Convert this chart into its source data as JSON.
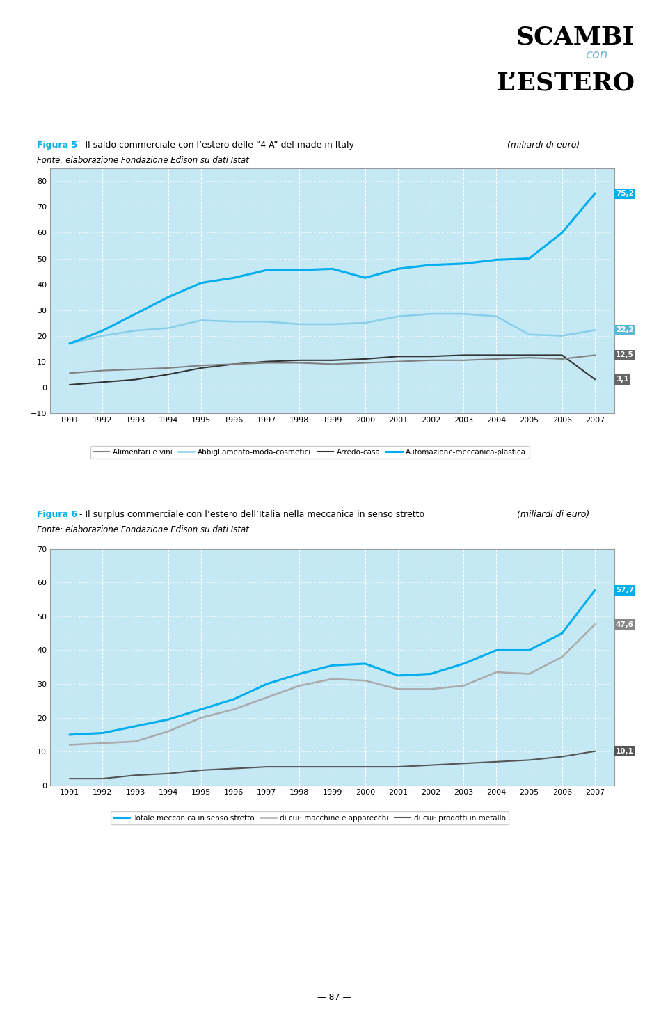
{
  "years5": [
    1991,
    1992,
    1993,
    1994,
    1995,
    1996,
    1997,
    1998,
    1999,
    2000,
    2001,
    2002,
    2003,
    2004,
    2005,
    2006,
    2007
  ],
  "years6": [
    1991,
    1992,
    1993,
    1994,
    1995,
    1996,
    1997,
    1998,
    1999,
    2000,
    2001,
    2002,
    2003,
    2004,
    2005,
    2006,
    2007
  ],
  "fig5_title_bold": "Figura 5",
  "fig5_title_rest": " - Il saldo commerciale con l’estero delle “4 A” del made in Italy",
  "fig5_title_italic": " (miliardi di euro)",
  "fig5_source": "Fonte: elaborazione Fondazione Edison su dati Istat",
  "fig5_alimentari": [
    5.5,
    6.5,
    7.0,
    7.5,
    8.5,
    9.0,
    9.5,
    9.5,
    9.0,
    9.5,
    10.0,
    10.5,
    10.5,
    11.0,
    11.5,
    11.0,
    12.5
  ],
  "fig5_abbigliamento": [
    17.0,
    20.0,
    22.0,
    23.0,
    26.0,
    25.5,
    25.5,
    24.5,
    24.5,
    25.0,
    27.5,
    28.5,
    28.5,
    27.5,
    20.5,
    20.0,
    22.2
  ],
  "fig5_arredo": [
    1.0,
    2.0,
    3.0,
    5.0,
    7.5,
    9.0,
    10.0,
    10.5,
    10.5,
    11.0,
    12.0,
    12.0,
    12.5,
    12.5,
    12.5,
    12.5,
    3.1
  ],
  "fig5_automazione": [
    17.0,
    22.0,
    28.5,
    35.0,
    40.5,
    42.5,
    45.5,
    45.5,
    46.0,
    42.5,
    46.0,
    47.5,
    48.0,
    49.5,
    50.0,
    60.0,
    75.2
  ],
  "fig5_ylim": [
    -10,
    85
  ],
  "fig5_yticks": [
    -10,
    0,
    10,
    20,
    30,
    40,
    50,
    60,
    70,
    80
  ],
  "fig5_colors": {
    "alimentari": "#808080",
    "abbigliamento": "#87CEEB",
    "arredo": "#333333",
    "automazione": "#00AEEF"
  },
  "fig6_title_bold": "Figura 6",
  "fig6_title_rest": " - Il surplus commerciale con l’estero dell’Italia nella meccanica in senso stretto",
  "fig6_title_italic": " (miliardi di euro)",
  "fig6_source": "Fonte: elaborazione Fondazione Edison su dati Istat",
  "fig6_totale": [
    15.0,
    15.5,
    17.5,
    19.5,
    22.5,
    25.5,
    30.0,
    33.0,
    35.5,
    36.0,
    32.5,
    33.0,
    36.0,
    40.0,
    40.0,
    45.0,
    57.7
  ],
  "fig6_macchine": [
    12.0,
    12.5,
    13.0,
    16.0,
    20.0,
    22.5,
    26.0,
    29.5,
    31.5,
    31.0,
    28.5,
    28.5,
    29.5,
    33.5,
    33.0,
    38.0,
    47.6
  ],
  "fig6_prodotti": [
    2.0,
    2.0,
    3.0,
    3.5,
    4.5,
    5.0,
    5.5,
    5.5,
    5.5,
    5.5,
    5.5,
    6.0,
    6.5,
    7.0,
    7.5,
    8.5,
    10.1
  ],
  "fig6_ylim": [
    0,
    70
  ],
  "fig6_yticks": [
    0,
    10,
    20,
    30,
    40,
    50,
    60,
    70
  ],
  "fig6_colors": {
    "totale": "#00AEEF",
    "macchine": "#A9A9A9",
    "prodotti": "#555555"
  },
  "background_color": "#C5E8F5",
  "page_color": "#FFFFFF",
  "header_scambi": "SCAMBI",
  "header_con": "con",
  "header_lestero": "L’ESTERO",
  "page_number": "— 87 —"
}
